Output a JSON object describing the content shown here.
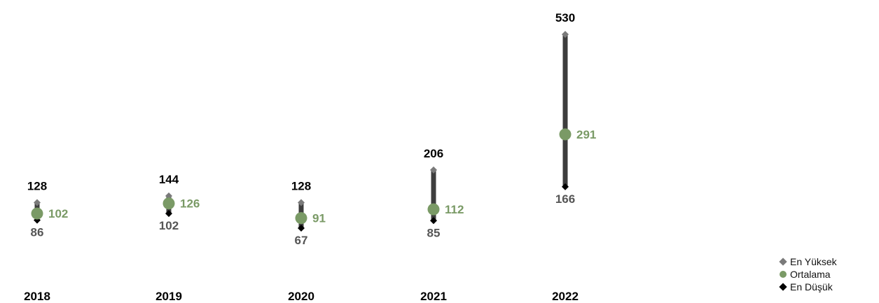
{
  "chart_data": {
    "type": "high-low-average",
    "categories": [
      "2018",
      "2019",
      "2020",
      "2021",
      "2022"
    ],
    "series": [
      {
        "name": "En Yüksek",
        "values": [
          128,
          144,
          128,
          206,
          530
        ]
      },
      {
        "name": "Ortalama",
        "values": [
          102,
          126,
          91,
          112,
          291
        ]
      },
      {
        "name": "En Düşük",
        "values": [
          86,
          102,
          67,
          85,
          166
        ]
      }
    ],
    "data_labels": {
      "high": [
        "128",
        "144",
        "128",
        "206",
        "530"
      ],
      "average": [
        "102",
        "126",
        "91",
        "112",
        "291"
      ],
      "low": [
        "86",
        "102",
        "67",
        "85",
        "166"
      ]
    },
    "legend_position": "bottom-right",
    "grid": false
  },
  "legend": {
    "items": [
      {
        "label": "En Yüksek",
        "color": "#7a7a7a",
        "shape": "diamond"
      },
      {
        "label": "Ortalama",
        "color": "#7a9a66",
        "shape": "circle"
      },
      {
        "label": "En Düşük",
        "color": "#000000",
        "shape": "diamond"
      }
    ]
  },
  "colors": {
    "bar": "#3d3d3d",
    "high_marker": "#7a7a7a",
    "average": "#7a9a66",
    "low_marker": "#000000",
    "high_label": "#000000",
    "low_label": "#555555",
    "axis_label": "#000000"
  }
}
